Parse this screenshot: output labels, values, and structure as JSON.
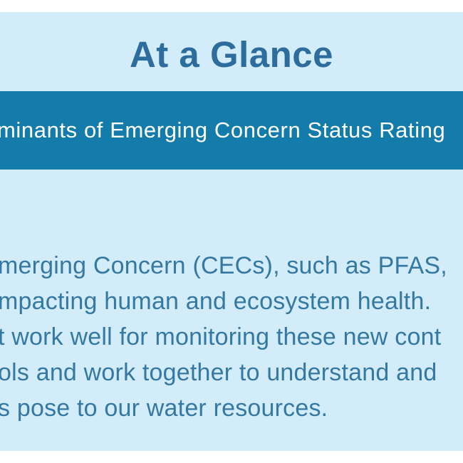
{
  "page": {
    "section_title": "At a Glance",
    "banner": {
      "visible_text": "minants of Emerging Concern Status Rating",
      "background_color": "#147cab",
      "text_color": "#ffffff"
    },
    "paragraph": {
      "visible_lines": [
        "merging Concern (CECs), such as PFAS,",
        "mpacting human and ecosystem health.",
        "t work well for monitoring these new cont",
        "ols and work together to understand and",
        "s pose to our water resources."
      ],
      "text_color": "#3578a2"
    },
    "colors": {
      "page_background": "#ffffff",
      "panel_background": "#d2ecfa",
      "title_color": "#2d6d9d"
    }
  }
}
